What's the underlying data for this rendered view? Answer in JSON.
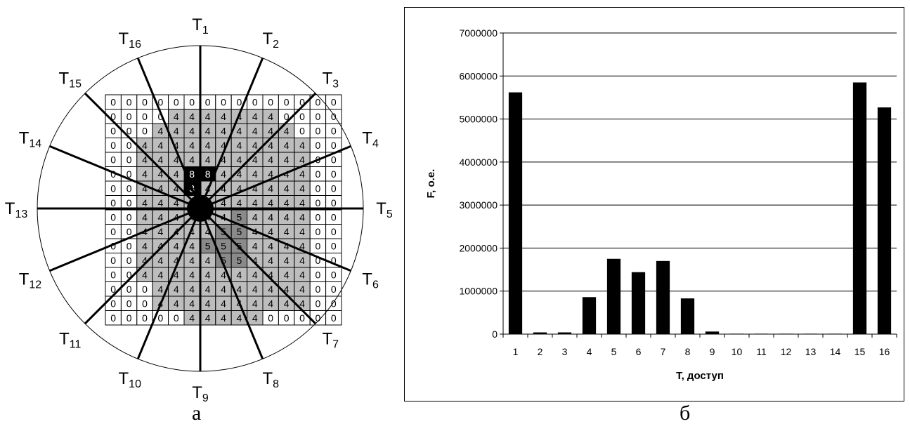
{
  "panel_a": {
    "caption": "а",
    "direction_labels": [
      "1",
      "2",
      "3",
      "4",
      "5",
      "6",
      "7",
      "8",
      "9",
      "10",
      "11",
      "12",
      "13",
      "14",
      "15",
      "16"
    ],
    "direction_prefix": "T",
    "grid": [
      [
        0,
        0,
        0,
        0,
        0,
        0,
        0,
        0,
        0,
        0,
        0,
        0,
        0,
        0,
        0
      ],
      [
        0,
        0,
        0,
        0,
        4,
        4,
        4,
        4,
        4,
        4,
        4,
        0,
        0,
        0,
        0
      ],
      [
        0,
        0,
        0,
        4,
        4,
        4,
        4,
        4,
        4,
        4,
        4,
        4,
        0,
        0,
        0
      ],
      [
        0,
        0,
        4,
        4,
        4,
        4,
        4,
        4,
        4,
        4,
        4,
        4,
        4,
        0,
        0
      ],
      [
        0,
        0,
        4,
        4,
        4,
        4,
        4,
        4,
        4,
        4,
        4,
        4,
        4,
        0,
        0
      ],
      [
        0,
        0,
        4,
        4,
        4,
        8,
        8,
        4,
        4,
        4,
        4,
        4,
        4,
        0,
        0
      ],
      [
        0,
        0,
        4,
        4,
        4,
        3,
        4,
        4,
        4,
        4,
        4,
        4,
        4,
        0,
        0
      ],
      [
        0,
        0,
        4,
        4,
        4,
        4,
        4,
        4,
        4,
        4,
        4,
        4,
        4,
        0,
        0
      ],
      [
        0,
        0,
        4,
        4,
        4,
        4,
        4,
        4,
        5,
        4,
        4,
        4,
        4,
        0,
        0
      ],
      [
        0,
        0,
        4,
        4,
        4,
        4,
        4,
        5,
        5,
        4,
        4,
        4,
        4,
        0,
        0
      ],
      [
        0,
        0,
        4,
        4,
        4,
        4,
        5,
        5,
        5,
        4,
        4,
        4,
        4,
        0,
        0
      ],
      [
        0,
        0,
        4,
        4,
        4,
        4,
        4,
        5,
        5,
        4,
        4,
        4,
        4,
        0,
        0
      ],
      [
        0,
        0,
        4,
        4,
        4,
        4,
        4,
        4,
        4,
        4,
        4,
        4,
        4,
        0,
        0
      ],
      [
        0,
        0,
        0,
        4,
        4,
        4,
        4,
        4,
        4,
        4,
        4,
        4,
        4,
        0,
        0
      ],
      [
        0,
        0,
        0,
        4,
        4,
        4,
        4,
        4,
        4,
        4,
        4,
        4,
        4,
        0,
        0
      ],
      [
        0,
        0,
        0,
        0,
        0,
        4,
        4,
        4,
        4,
        4,
        0,
        0,
        0,
        0,
        0
      ]
    ]
  },
  "panel_b": {
    "caption": "б"
  },
  "chart_data": {
    "type": "bar",
    "categories": [
      "1",
      "2",
      "3",
      "4",
      "5",
      "6",
      "7",
      "8",
      "9",
      "10",
      "11",
      "12",
      "13",
      "14",
      "15",
      "16"
    ],
    "values": [
      5620000,
      40000,
      40000,
      860000,
      1750000,
      1440000,
      1700000,
      830000,
      60000,
      10000,
      10000,
      10000,
      10000,
      10000,
      5850000,
      5270000
    ],
    "ylim": [
      0,
      7000000
    ],
    "yticks": [
      "0",
      "1000000",
      "2000000",
      "3000000",
      "4000000",
      "5000000",
      "6000000",
      "7000000"
    ],
    "ytick_values": [
      0,
      1000000,
      2000000,
      3000000,
      4000000,
      5000000,
      6000000,
      7000000
    ],
    "xlabel": "T, доступ",
    "ylabel": "F, о.е.",
    "grid": true,
    "bar_color": "#000000"
  }
}
